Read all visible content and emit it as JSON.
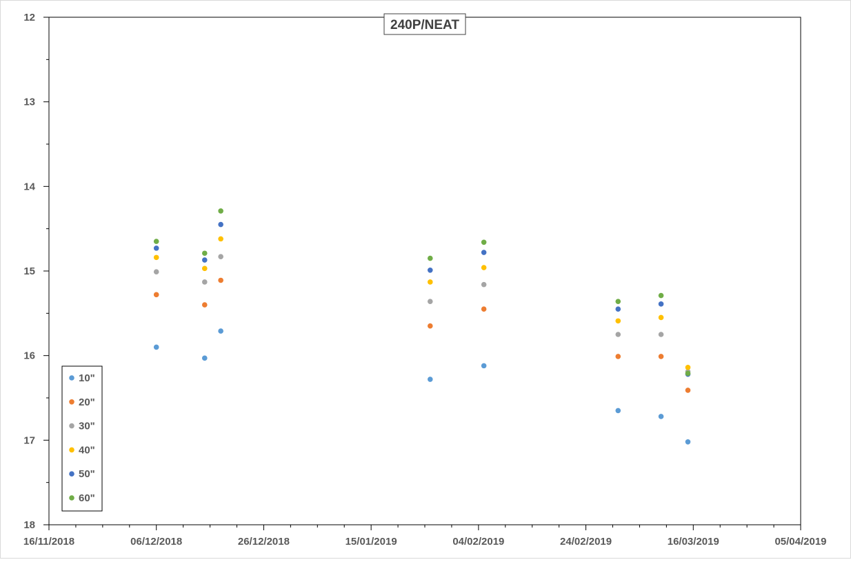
{
  "chart_data": {
    "type": "scatter",
    "title": "240P/NEAT",
    "xlabel": "",
    "ylabel": "",
    "x_axis": {
      "type": "date",
      "min": "2018-11-16",
      "max": "2019-04-05",
      "major_step_days": 20,
      "minor_step_days": 5,
      "tick_labels": [
        "16/11/2018",
        "06/12/2018",
        "26/12/2018",
        "15/01/2019",
        "04/02/2019",
        "24/02/2019",
        "16/03/2019",
        "05/04/2019"
      ]
    },
    "y_axis": {
      "min": 12,
      "max": 18,
      "reversed": true,
      "major_step": 1,
      "minor_step": 0.5,
      "tick_labels": [
        "12",
        "13",
        "14",
        "15",
        "16",
        "17",
        "18"
      ]
    },
    "grid": false,
    "legend": {
      "position": "bottom-left",
      "entries": [
        "10\"",
        "20\"",
        "30\"",
        "40\"",
        "50\"",
        "60\""
      ]
    },
    "x": [
      "2018-12-06",
      "2018-12-15",
      "2018-12-18",
      "2019-01-26",
      "2019-02-05",
      "2019-03-02",
      "2019-03-10",
      "2019-03-15"
    ],
    "series": [
      {
        "name": "10\"",
        "color": "#5B9BD5",
        "values": [
          15.9,
          16.03,
          15.71,
          16.28,
          16.12,
          16.65,
          16.72,
          17.02
        ]
      },
      {
        "name": "20\"",
        "color": "#ED7D31",
        "values": [
          15.28,
          15.4,
          15.11,
          15.65,
          15.45,
          16.01,
          16.01,
          16.41
        ]
      },
      {
        "name": "30\"",
        "color": "#A5A5A5",
        "values": [
          15.01,
          15.13,
          14.83,
          15.36,
          15.16,
          15.75,
          15.75,
          16.19
        ]
      },
      {
        "name": "40\"",
        "color": "#FFC000",
        "values": [
          14.84,
          14.97,
          14.62,
          15.13,
          14.96,
          15.59,
          15.55,
          16.14
        ]
      },
      {
        "name": "50\"",
        "color": "#4472C4",
        "values": [
          14.73,
          14.87,
          14.45,
          14.99,
          14.78,
          15.45,
          15.39,
          16.22
        ]
      },
      {
        "name": "60\"",
        "color": "#70AD47",
        "values": [
          14.65,
          14.79,
          14.29,
          14.85,
          14.66,
          15.36,
          15.29,
          16.21
        ]
      }
    ]
  }
}
